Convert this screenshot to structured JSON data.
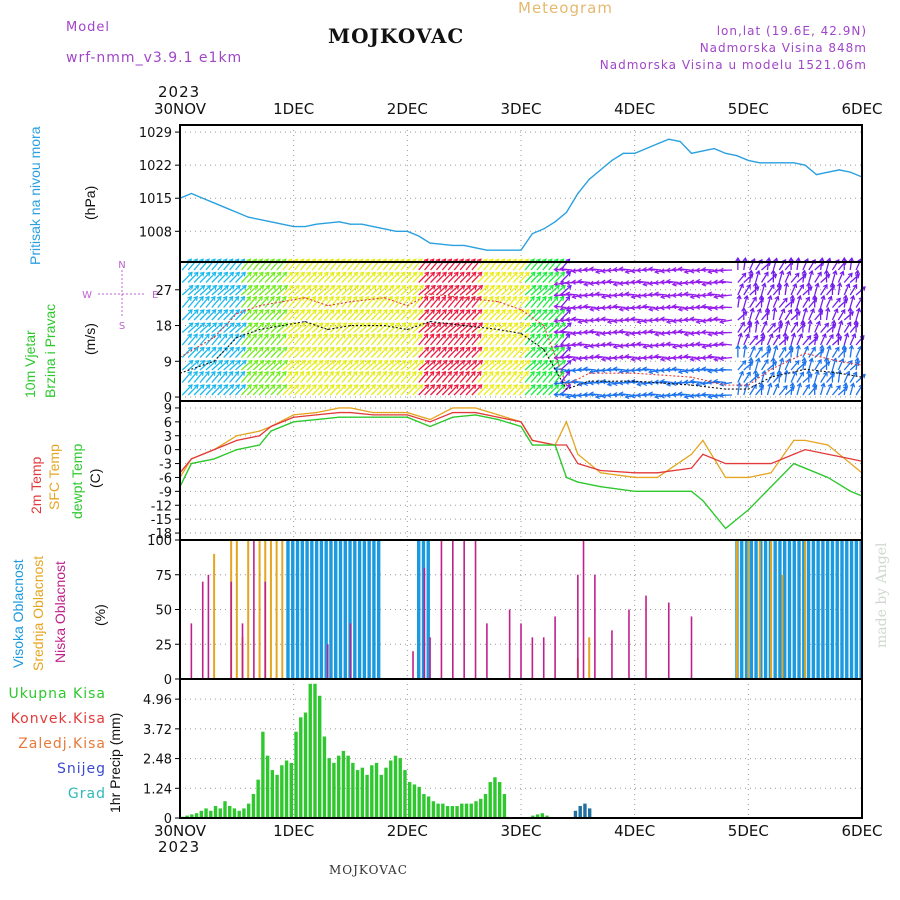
{
  "header": {
    "model_label": "Model",
    "model_name": "wrf-nmm_v3.9.1 e1km",
    "title": "MOJKOVAC",
    "meteogram": "Meteogram",
    "lonlat": "lon,lat (19.6E, 42.9N)",
    "altitude": "Nadmorska Visina 848m",
    "model_altitude": "Nadmorska Visina u modelu 1521.06m",
    "year_top": "2023",
    "year_bottom": "2023",
    "footer": "MOJKOVAC",
    "credit": "made by Angel"
  },
  "colors": {
    "pressure": "#2aa0e0",
    "t2m": "#e23a3a",
    "sfc": "#e5a520",
    "dewpt": "#2ec82e",
    "high_cloud": "#1a9ae0",
    "mid_cloud": "#e5a520",
    "low_cloud": "#c0208a",
    "precip_total": "#2ec82e",
    "snow": "#3a4ad0",
    "grad": "#2fb8b8",
    "wind_speed": "#111111",
    "wind_gust": "#e23a3a"
  },
  "chart_data": [
    {
      "type": "line",
      "name": "pressure",
      "title": "Pritisak na nivou mora",
      "ylabel": "(hPa)",
      "x_ticks": [
        "30NOV",
        "1DEC",
        "2DEC",
        "3DEC",
        "4DEC",
        "5DEC",
        "6DEC"
      ],
      "ylim": [
        1001.5,
        1030.5
      ],
      "y_ticks": [
        1008,
        1015,
        1022,
        1029
      ],
      "grid": true,
      "series": [
        {
          "x": [
            0,
            0.1,
            0.2,
            0.3,
            0.4,
            0.5,
            0.6,
            0.8,
            1.0,
            1.1,
            1.2,
            1.4,
            1.5,
            1.6,
            1.7,
            1.8,
            1.9,
            2.0,
            2.1,
            2.2,
            2.4,
            2.5,
            2.6,
            2.7,
            2.8,
            2.9,
            3.0,
            3.1,
            3.2,
            3.3,
            3.4,
            3.5,
            3.6,
            3.7,
            3.8,
            3.9,
            4.0,
            4.1,
            4.2,
            4.3,
            4.4,
            4.5,
            4.6,
            4.7,
            4.8,
            4.9,
            5.0,
            5.1,
            5.2,
            5.3,
            5.4,
            5.5,
            5.6,
            5.7,
            5.8,
            5.9,
            6.0
          ],
          "values": [
            1015,
            1016,
            1015,
            1014,
            1013,
            1012,
            1011,
            1010,
            1009,
            1009,
            1009.5,
            1010,
            1009.5,
            1009.5,
            1009,
            1008.5,
            1008,
            1008,
            1007,
            1005.5,
            1005,
            1005,
            1004.5,
            1004,
            1004,
            1004,
            1004,
            1007.5,
            1008.5,
            1010,
            1012,
            1016,
            1019,
            1021,
            1023,
            1024.5,
            1024.5,
            1025.5,
            1026.5,
            1027.5,
            1027,
            1024.5,
            1025,
            1025.5,
            1024.5,
            1024,
            1023,
            1022.5,
            1022.5,
            1022.5,
            1022.5,
            1022,
            1020,
            1020.5,
            1021,
            1020.5,
            1019.5
          ]
        }
      ]
    },
    {
      "type": "line",
      "name": "wind",
      "title": "10m Vjetar Brzina i Pravac",
      "ylabel": "(m/s)",
      "ylim": [
        -1,
        34
      ],
      "y_ticks": [
        0,
        9,
        18,
        27
      ],
      "compass": {
        "north": "N",
        "south": "S",
        "east": "E",
        "west": "W"
      },
      "grid": true,
      "series": [
        {
          "x": [
            0,
            0.3,
            0.5,
            0.7,
            0.9,
            1.1,
            1.3,
            1.5,
            1.8,
            2.0,
            2.2,
            2.5,
            2.8,
            3.0,
            3.2,
            3.4,
            3.6,
            4.0,
            4.5,
            4.8,
            5.0,
            5.2,
            5.5,
            5.8,
            6.0
          ],
          "values": [
            6,
            9,
            15,
            17,
            18,
            19,
            17,
            18,
            18,
            17,
            19,
            18,
            17,
            16,
            12,
            2,
            4,
            4,
            3,
            2,
            2,
            5,
            7,
            6,
            5
          ]
        },
        {
          "x": [
            0,
            0.3,
            0.5,
            0.7,
            0.9,
            1.1,
            1.3,
            1.5,
            1.8,
            2.0,
            2.2,
            2.5,
            2.8,
            3.0,
            3.2,
            3.4,
            3.6,
            4.0,
            4.5,
            4.8,
            5.0,
            5.2,
            5.5,
            5.8,
            6.0
          ],
          "values": [
            10,
            15,
            21,
            23,
            24,
            25,
            23,
            24,
            25,
            23,
            26,
            25,
            24,
            22,
            18,
            3,
            6,
            6,
            5,
            3,
            3,
            7,
            11,
            9,
            8
          ]
        }
      ]
    },
    {
      "type": "line",
      "name": "temperature",
      "title": "2m Temp / SFC Temp / dewpt Temp",
      "ylabel": "(C)",
      "ylim": [
        -19.5,
        10.5
      ],
      "y_ticks": [
        9,
        6,
        3,
        0,
        -3,
        -6,
        -9,
        -12,
        -15,
        -18
      ],
      "grid": true,
      "series": [
        {
          "name": "2m Temp",
          "x": [
            0,
            0.1,
            0.3,
            0.5,
            0.7,
            0.8,
            1.0,
            1.2,
            1.4,
            1.5,
            1.7,
            2.0,
            2.2,
            2.4,
            2.6,
            2.8,
            3.0,
            3.1,
            3.3,
            3.4,
            3.5,
            3.7,
            4.0,
            4.2,
            4.5,
            4.6,
            4.8,
            5.0,
            5.2,
            5.4,
            5.5,
            5.7,
            5.9,
            6.0
          ],
          "values": [
            -5,
            -2,
            0,
            2,
            3,
            5,
            7,
            7.5,
            8,
            8,
            7.5,
            7.5,
            6,
            8,
            8,
            7,
            6,
            2,
            1,
            1,
            -3,
            -4.5,
            -5,
            -5,
            -4,
            -1,
            -3,
            -3,
            -3,
            -1,
            0,
            -1,
            -2,
            -2.5
          ]
        },
        {
          "name": "SFC Temp",
          "x": [
            0,
            0.1,
            0.3,
            0.5,
            0.7,
            0.8,
            1.0,
            1.2,
            1.4,
            1.5,
            1.7,
            2.0,
            2.2,
            2.4,
            2.6,
            2.8,
            3.0,
            3.1,
            3.3,
            3.4,
            3.5,
            3.7,
            4.0,
            4.2,
            4.5,
            4.6,
            4.8,
            5.0,
            5.2,
            5.4,
            5.5,
            5.7,
            5.9,
            6.0
          ],
          "values": [
            -6,
            -2,
            0,
            3,
            4,
            5,
            7.5,
            8,
            9,
            9,
            8,
            8,
            6.5,
            9,
            9,
            7.5,
            6,
            2,
            1,
            6,
            -1,
            -5,
            -6,
            -6,
            -1,
            2,
            -6,
            -6,
            -5,
            2,
            2,
            1,
            -3,
            -5
          ]
        },
        {
          "name": "dewpt Temp",
          "x": [
            0,
            0.1,
            0.3,
            0.5,
            0.7,
            0.8,
            1.0,
            1.2,
            1.4,
            1.5,
            1.7,
            2.0,
            2.2,
            2.4,
            2.6,
            2.8,
            3.0,
            3.1,
            3.3,
            3.4,
            3.5,
            3.7,
            4.0,
            4.2,
            4.5,
            4.6,
            4.8,
            5.0,
            5.2,
            5.4,
            5.5,
            5.7,
            5.9,
            6.0
          ],
          "values": [
            -8,
            -3,
            -2,
            0,
            1,
            4,
            6,
            6.5,
            7,
            7,
            7,
            7,
            5,
            7,
            7.5,
            6.5,
            5,
            1,
            1,
            -6,
            -7,
            -8,
            -9,
            -9,
            -9,
            -11,
            -17,
            -13,
            -8,
            -3,
            -4,
            -6,
            -9,
            -10
          ]
        }
      ]
    },
    {
      "type": "bar",
      "name": "clouds",
      "title": "Visoka Oblacnost / Srednja Oblacnost / Niska Oblacnost",
      "ylabel": "(%)",
      "ylim": [
        0,
        100
      ],
      "y_ticks": [
        0,
        25,
        50,
        75,
        100
      ],
      "grid": true,
      "series": [
        {
          "name": "Visoka Oblacnost",
          "ranges": [
            [
              0.95,
              1.75
            ],
            [
              2.1,
              2.2
            ],
            [
              4.9,
              6.0
            ]
          ],
          "value": 100
        },
        {
          "name": "Srednja Oblacnost",
          "x": [
            0.3,
            0.45,
            0.5,
            0.55,
            0.6,
            0.7,
            0.75,
            0.8,
            0.85,
            0.9,
            3.5,
            3.6,
            4.9,
            5.0,
            5.1,
            5.2,
            5.3,
            5.5
          ],
          "values": [
            90,
            100,
            100,
            30,
            100,
            100,
            100,
            100,
            100,
            100,
            15,
            30,
            100,
            100,
            100,
            100,
            75,
            100
          ]
        },
        {
          "name": "Niska Oblacnost",
          "x": [
            0.1,
            0.2,
            0.25,
            0.45,
            0.55,
            0.65,
            0.75,
            1.3,
            1.5,
            2.05,
            2.15,
            2.2,
            2.3,
            2.4,
            2.5,
            2.6,
            2.7,
            2.9,
            3.0,
            3.1,
            3.2,
            3.3,
            3.5,
            3.55,
            3.65,
            3.8,
            3.95,
            4.1,
            4.3,
            4.5
          ],
          "values": [
            40,
            70,
            75,
            70,
            40,
            100,
            70,
            25,
            40,
            20,
            80,
            30,
            100,
            100,
            100,
            100,
            40,
            50,
            40,
            30,
            30,
            45,
            75,
            100,
            75,
            35,
            50,
            60,
            55,
            45
          ]
        }
      ]
    },
    {
      "type": "bar",
      "name": "precip",
      "title": "1hr Precip",
      "ylabel": "1hr Precip (mm)",
      "legend": [
        "Ukupna Kisa",
        "Konvek.Kisa",
        "Zaledj.Kisa",
        "Snijeg",
        "Grad"
      ],
      "ylim": [
        0,
        5.8
      ],
      "y_ticks": [
        0,
        1.24,
        2.48,
        3.72,
        4.96
      ],
      "grid": true,
      "step_hours": 1,
      "values": [
        0.05,
        0.1,
        0.15,
        0.2,
        0.3,
        0.4,
        0.3,
        0.5,
        0.4,
        0.7,
        0.5,
        0.4,
        0.3,
        0.4,
        0.6,
        1.0,
        1.6,
        3.6,
        2.6,
        2.0,
        1.8,
        2.2,
        2.4,
        2.3,
        3.6,
        4.2,
        4.4,
        5.6,
        5.6,
        5.1,
        3.4,
        2.5,
        2.3,
        2.6,
        2.8,
        2.6,
        2.3,
        2.0,
        2.1,
        1.8,
        2.2,
        2.3,
        1.8,
        2.1,
        2.4,
        2.6,
        2.5,
        2.0,
        1.5,
        1.4,
        1.3,
        1.0,
        0.9,
        0.7,
        0.6,
        0.6,
        0.5,
        0.5,
        0.5,
        0.6,
        0.6,
        0.6,
        0.7,
        0.8,
        1.0,
        1.5,
        1.7,
        1.5,
        1.0,
        0,
        0,
        0,
        0,
        0,
        0.1,
        0.15,
        0.2,
        0.1,
        0,
        0,
        0,
        0,
        0,
        0.3,
        0.5,
        0.6,
        0.4,
        0,
        0,
        0,
        0,
        0,
        0,
        0,
        0,
        0,
        0,
        0,
        0,
        0,
        0,
        0,
        0,
        0,
        0,
        0,
        0,
        0,
        0,
        0,
        0,
        0,
        0,
        0,
        0,
        0,
        0,
        0,
        0,
        0,
        0,
        0,
        0,
        0,
        0,
        0,
        0,
        0,
        0,
        0,
        0,
        0,
        0,
        0,
        0,
        0,
        0,
        0,
        0,
        0,
        0,
        0,
        0,
        0,
        0,
        0,
        0,
        0
      ]
    }
  ]
}
